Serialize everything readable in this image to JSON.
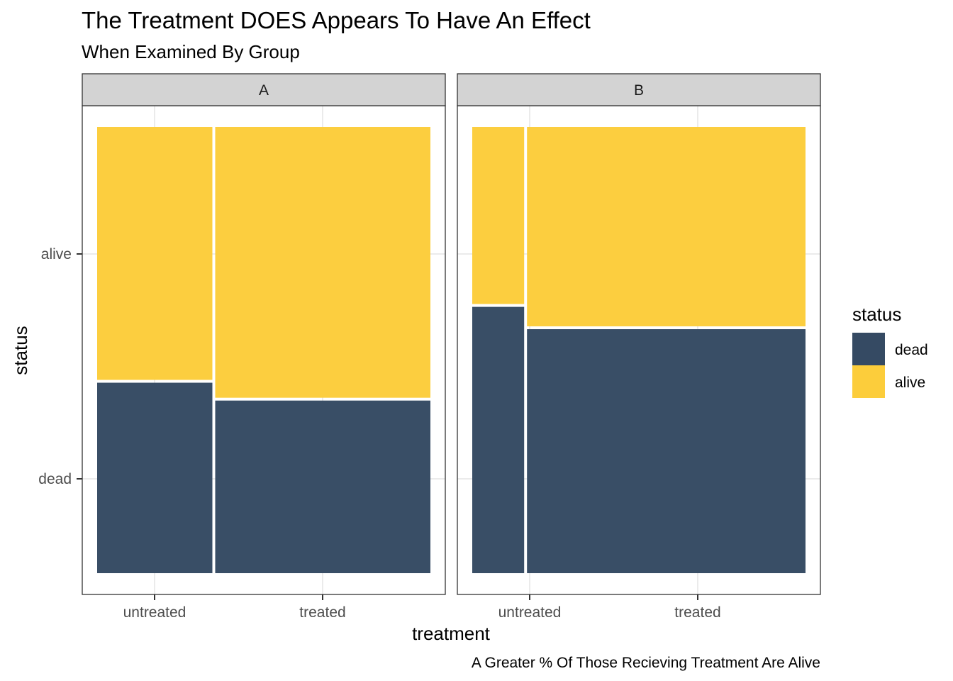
{
  "title": "The Treatment DOES Appears To Have An Effect",
  "subtitle": "When Examined By Group",
  "caption": "A Greater % Of Those Recieving Treatment Are Alive",
  "colors": {
    "dead": "#354a63",
    "alive": "#fccd3b",
    "strip_bg": "#d3d3d3",
    "grid": "#ebebeb",
    "panel_border": "#333333"
  },
  "chart_data": {
    "type": "mosaic",
    "xlabel": "treatment",
    "ylabel": "status",
    "x_categories": [
      "untreated",
      "treated"
    ],
    "y_categories": [
      "dead",
      "alive"
    ],
    "legend": {
      "title": "status",
      "entries": [
        "dead",
        "alive"
      ],
      "placement": "right"
    },
    "grid": true,
    "facets": [
      {
        "label": "A",
        "columns": [
          {
            "treatment": "untreated",
            "width_share": 0.35,
            "dead_share": 0.43,
            "alive_share": 0.57
          },
          {
            "treatment": "treated",
            "width_share": 0.65,
            "dead_share": 0.39,
            "alive_share": 0.61
          }
        ]
      },
      {
        "label": "B",
        "columns": [
          {
            "treatment": "untreated",
            "width_share": 0.16,
            "dead_share": 0.6,
            "alive_share": 0.4
          },
          {
            "treatment": "treated",
            "width_share": 0.84,
            "dead_share": 0.55,
            "alive_share": 0.45
          }
        ]
      }
    ]
  }
}
